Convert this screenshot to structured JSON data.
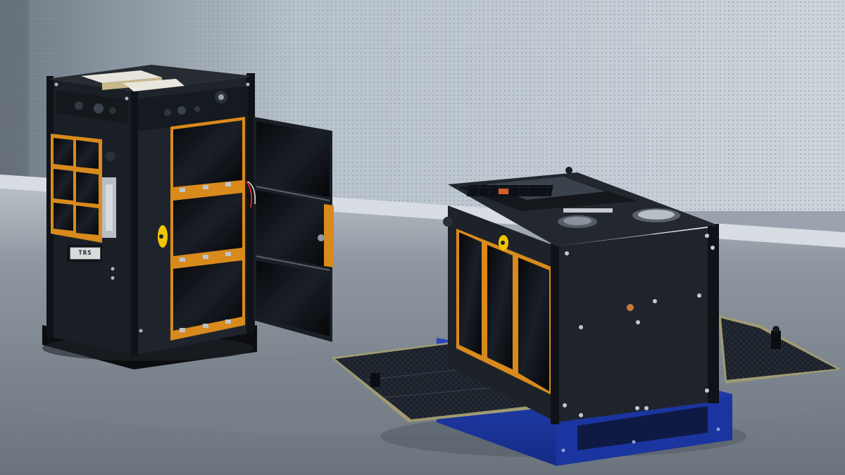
{
  "scene": {
    "description_tags": [
      "cubesat-left",
      "cubesat-right",
      "solar-panels",
      "perforated-backdrop",
      "metal-table"
    ],
    "colors": {
      "backdrop": "#b9c3cc",
      "table": "#8d969f",
      "chassis": "#15191f",
      "copper_flex": "#d98a1c",
      "solar_cell": "#0c0f14",
      "blue_mount": "#1b3aa8"
    }
  },
  "labels": {
    "left_tag": "TRS"
  }
}
